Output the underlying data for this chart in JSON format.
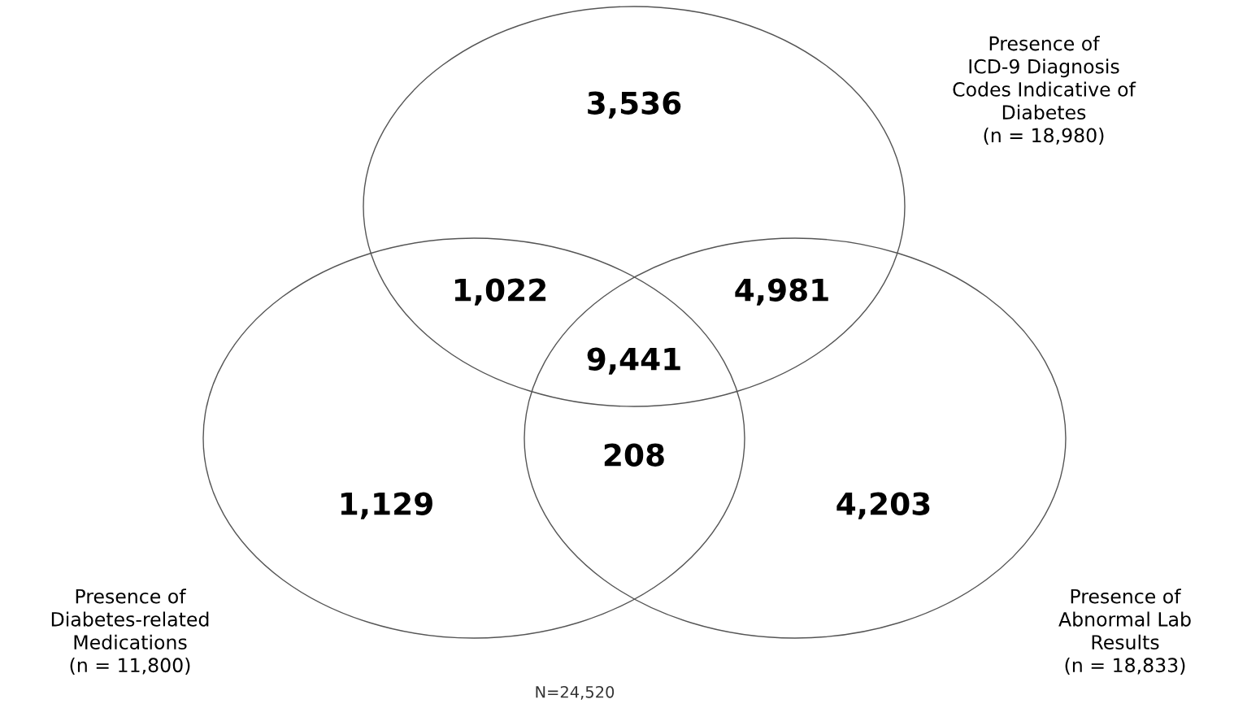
{
  "chart_data": {
    "type": "other",
    "categories": [
      null,
      null,
      null,
      null,
      null,
      null,
      null
    ],
    "values": [
      3536,
      1022,
      4981,
      9441,
      208,
      1129,
      4203
    ],
    "value_labels": [
      "3,536",
      "1,022",
      "4,981",
      "9,441",
      "208",
      "1,129",
      "4,203"
    ],
    "annotations": [
      "Presence of\nICD-9 Diagnosis\nCodes Indicative of\nDiabetes\n(n = 18,980)",
      "Presence of\nDiabetes-related\nMedications\n(n = 11,800)",
      "Presence of\nAbnormal Lab\nResults\n(n = 18,833)",
      "N=24,520"
    ]
  }
}
